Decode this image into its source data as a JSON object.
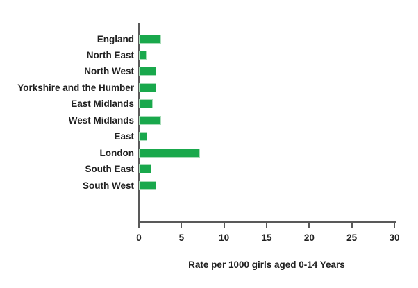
{
  "chart_data": {
    "type": "bar",
    "orientation": "horizontal",
    "title": "",
    "categories": [
      "England",
      "North East",
      "North West",
      "Yorkshire and the Humber",
      "East Midlands",
      "West Midlands",
      "East",
      "London",
      "South East",
      "South West"
    ],
    "values": [
      2.6,
      0.9,
      2.0,
      2.0,
      1.6,
      2.6,
      1.0,
      7.2,
      1.5,
      2.0
    ],
    "xlabel": "Rate per 1000 girls aged 0-14 Years",
    "ylabel": "",
    "xticks": [
      0,
      5,
      10,
      15,
      20,
      25,
      30
    ],
    "xlim": [
      0,
      30
    ],
    "grid": false,
    "legend": false,
    "bar_color": "#19a84c",
    "bar_border_color": "#a7dcb8",
    "axis_color": "#595959",
    "text_color": "#212121"
  }
}
